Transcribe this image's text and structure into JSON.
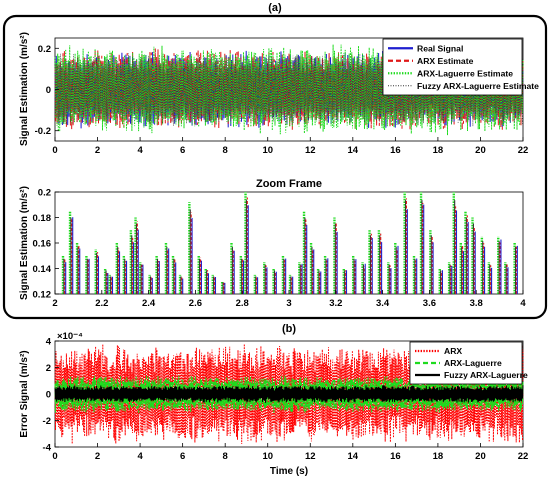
{
  "figure": {
    "panel_a_label": "(a)",
    "panel_b_label": "(b)"
  },
  "chart_data": [
    {
      "type": "line",
      "title": "",
      "xlabel": "",
      "ylabel": "Signal Estimation (m/s²)",
      "xlim": [
        0,
        22
      ],
      "ylim": [
        -0.25,
        0.25
      ],
      "xticks": [
        "0",
        "2",
        "4",
        "6",
        "8",
        "10",
        "12",
        "14",
        "16",
        "18",
        "20",
        "22"
      ],
      "yticks": [
        "0.2",
        "0",
        "-0.2"
      ],
      "legend_position": "top-right",
      "series": [
        {
          "name": "Real Signal",
          "color": "#1f1fcf",
          "style": "solid",
          "amplitude": 0.17
        },
        {
          "name": "ARX Estimate",
          "color": "#e01818",
          "style": "dashed",
          "amplitude": 0.18
        },
        {
          "name": "ARX-Laguerre Estimate",
          "color": "#1edb1e",
          "style": "dotted",
          "amplitude": 0.2
        },
        {
          "name": "Fuzzy ARX-Laguerre Estimate",
          "color": "#333333",
          "style": "dotted-thin",
          "amplitude": 0.16
        }
      ]
    },
    {
      "type": "bar",
      "title": "Zoom Frame",
      "xlabel": "",
      "ylabel": "Signal Estimation (m/s²)",
      "xlim": [
        2,
        4
      ],
      "ylim": [
        0.12,
        0.2
      ],
      "xticks": [
        "2",
        "2.2",
        "2.4",
        "2.6",
        "2.8",
        "3",
        "3.2",
        "3.4",
        "3.6",
        "3.8",
        "4"
      ],
      "yticks": [
        "0.2",
        "0.18",
        "0.16",
        "0.14",
        "0.12"
      ],
      "series_colors": [
        "#1f1fcf",
        "#e01818",
        "#1edb1e",
        "#333333"
      ],
      "peaks": [
        {
          "x": 2.04,
          "v": 0.15
        },
        {
          "x": 2.07,
          "v": 0.185
        },
        {
          "x": 2.1,
          "v": 0.16
        },
        {
          "x": 2.14,
          "v": 0.15
        },
        {
          "x": 2.18,
          "v": 0.155
        },
        {
          "x": 2.22,
          "v": 0.14
        },
        {
          "x": 2.24,
          "v": 0.135
        },
        {
          "x": 2.27,
          "v": 0.16
        },
        {
          "x": 2.3,
          "v": 0.15
        },
        {
          "x": 2.33,
          "v": 0.17
        },
        {
          "x": 2.35,
          "v": 0.18
        },
        {
          "x": 2.37,
          "v": 0.145
        },
        {
          "x": 2.41,
          "v": 0.135
        },
        {
          "x": 2.44,
          "v": 0.15
        },
        {
          "x": 2.48,
          "v": 0.16
        },
        {
          "x": 2.51,
          "v": 0.15
        },
        {
          "x": 2.54,
          "v": 0.135
        },
        {
          "x": 2.58,
          "v": 0.192
        },
        {
          "x": 2.62,
          "v": 0.15
        },
        {
          "x": 2.65,
          "v": 0.14
        },
        {
          "x": 2.68,
          "v": 0.135
        },
        {
          "x": 2.72,
          "v": 0.13
        },
        {
          "x": 2.76,
          "v": 0.16
        },
        {
          "x": 2.8,
          "v": 0.15
        },
        {
          "x": 2.82,
          "v": 0.2
        },
        {
          "x": 2.86,
          "v": 0.135
        },
        {
          "x": 2.9,
          "v": 0.145
        },
        {
          "x": 2.94,
          "v": 0.14
        },
        {
          "x": 2.98,
          "v": 0.15
        },
        {
          "x": 3.01,
          "v": 0.135
        },
        {
          "x": 3.05,
          "v": 0.145
        },
        {
          "x": 3.07,
          "v": 0.185
        },
        {
          "x": 3.1,
          "v": 0.16
        },
        {
          "x": 3.13,
          "v": 0.14
        },
        {
          "x": 3.16,
          "v": 0.15
        },
        {
          "x": 3.2,
          "v": 0.18
        },
        {
          "x": 3.24,
          "v": 0.14
        },
        {
          "x": 3.28,
          "v": 0.15
        },
        {
          "x": 3.32,
          "v": 0.145
        },
        {
          "x": 3.35,
          "v": 0.17
        },
        {
          "x": 3.39,
          "v": 0.17
        },
        {
          "x": 3.43,
          "v": 0.145
        },
        {
          "x": 3.46,
          "v": 0.16
        },
        {
          "x": 3.5,
          "v": 0.2
        },
        {
          "x": 3.54,
          "v": 0.15
        },
        {
          "x": 3.57,
          "v": 0.2
        },
        {
          "x": 3.61,
          "v": 0.17
        },
        {
          "x": 3.65,
          "v": 0.14
        },
        {
          "x": 3.69,
          "v": 0.145
        },
        {
          "x": 3.71,
          "v": 0.2
        },
        {
          "x": 3.74,
          "v": 0.16
        },
        {
          "x": 3.76,
          "v": 0.185
        },
        {
          "x": 3.79,
          "v": 0.18
        },
        {
          "x": 3.83,
          "v": 0.165
        },
        {
          "x": 3.86,
          "v": 0.145
        },
        {
          "x": 3.9,
          "v": 0.165
        },
        {
          "x": 3.93,
          "v": 0.145
        },
        {
          "x": 3.97,
          "v": 0.16
        }
      ]
    },
    {
      "type": "line",
      "title": "",
      "xlabel": "Time (s)",
      "ylabel": "Error Signal (m/s²)",
      "y_scale_label": "×10⁻⁴",
      "xlim": [
        0,
        22
      ],
      "ylim": [
        -4,
        4
      ],
      "xticks": [
        "0",
        "2",
        "4",
        "6",
        "8",
        "10",
        "12",
        "14",
        "16",
        "18",
        "20",
        "22"
      ],
      "yticks": [
        "4",
        "2",
        "0",
        "-2",
        "-4"
      ],
      "legend_position": "top-right",
      "series": [
        {
          "name": "ARX",
          "color": "#ff0000",
          "style": "dotted",
          "amplitude": 3.4
        },
        {
          "name": "ARX-Laguerre",
          "color": "#1edb1e",
          "style": "dashed",
          "amplitude": 1.3
        },
        {
          "name": "Fuzzy ARX-Laguerre",
          "color": "#000000",
          "style": "solid",
          "amplitude": 0.6
        }
      ]
    }
  ]
}
